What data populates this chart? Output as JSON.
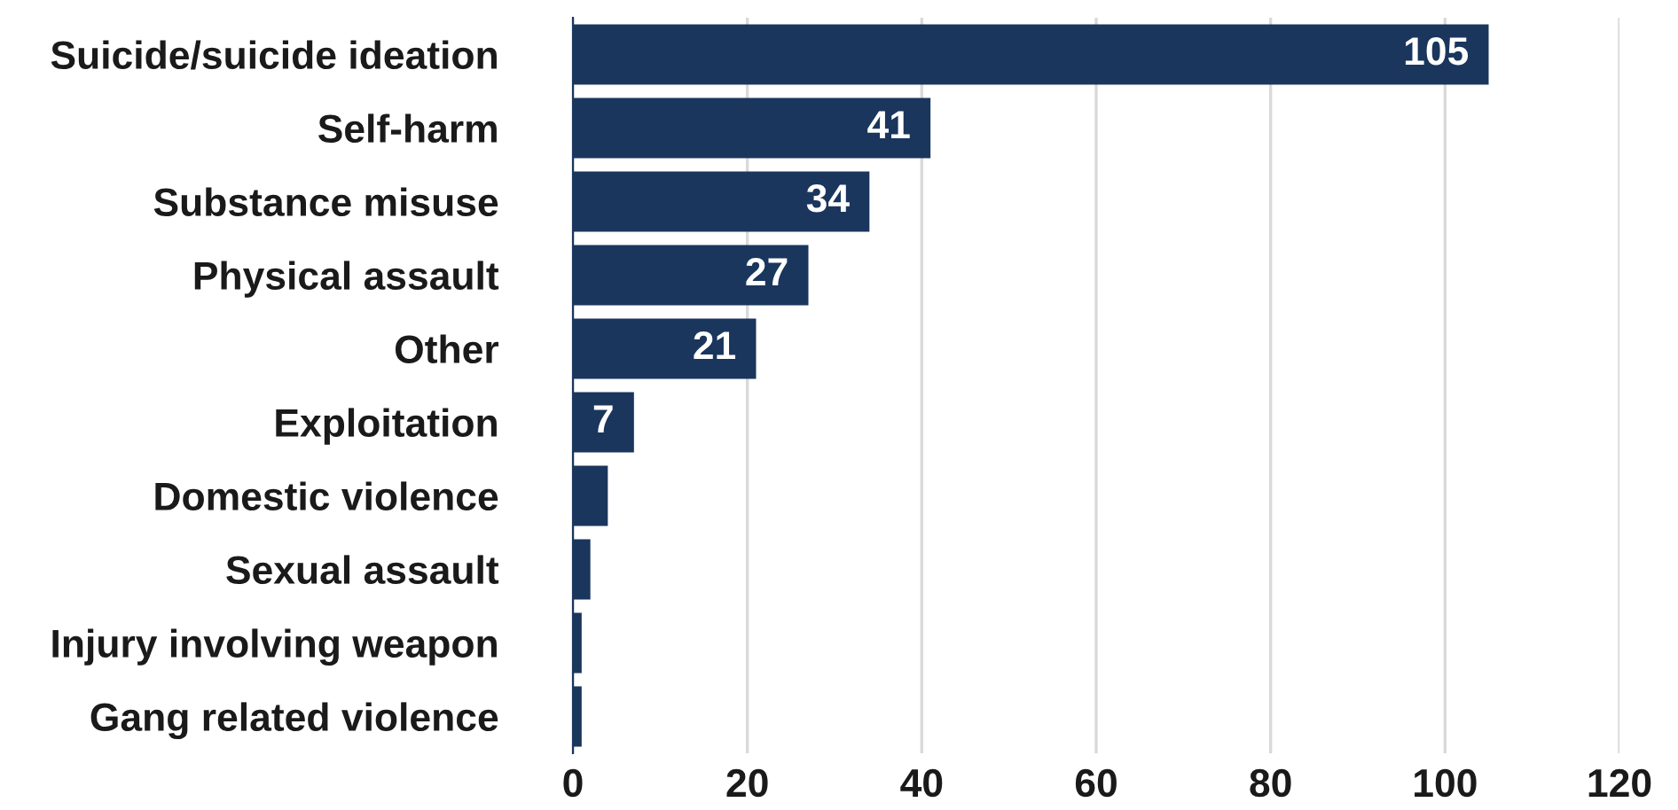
{
  "chart_data": {
    "type": "bar",
    "orientation": "horizontal",
    "categories": [
      "Suicide/suicide ideation",
      "Self-harm",
      "Substance misuse",
      "Physical assault",
      "Other",
      "Exploitation",
      "Domestic violence",
      "Sexual assault",
      "Injury involving weapon",
      "Gang related violence"
    ],
    "values": [
      105,
      41,
      34,
      27,
      21,
      7,
      4,
      2,
      1,
      1
    ],
    "value_labels": [
      "105",
      "41",
      "34",
      "27",
      "21",
      "7",
      null,
      null,
      null,
      null
    ],
    "color": "#1a365d",
    "xlim": [
      0,
      120
    ],
    "xticks": [
      0,
      20,
      40,
      60,
      80,
      100,
      120
    ],
    "grid": "x"
  }
}
